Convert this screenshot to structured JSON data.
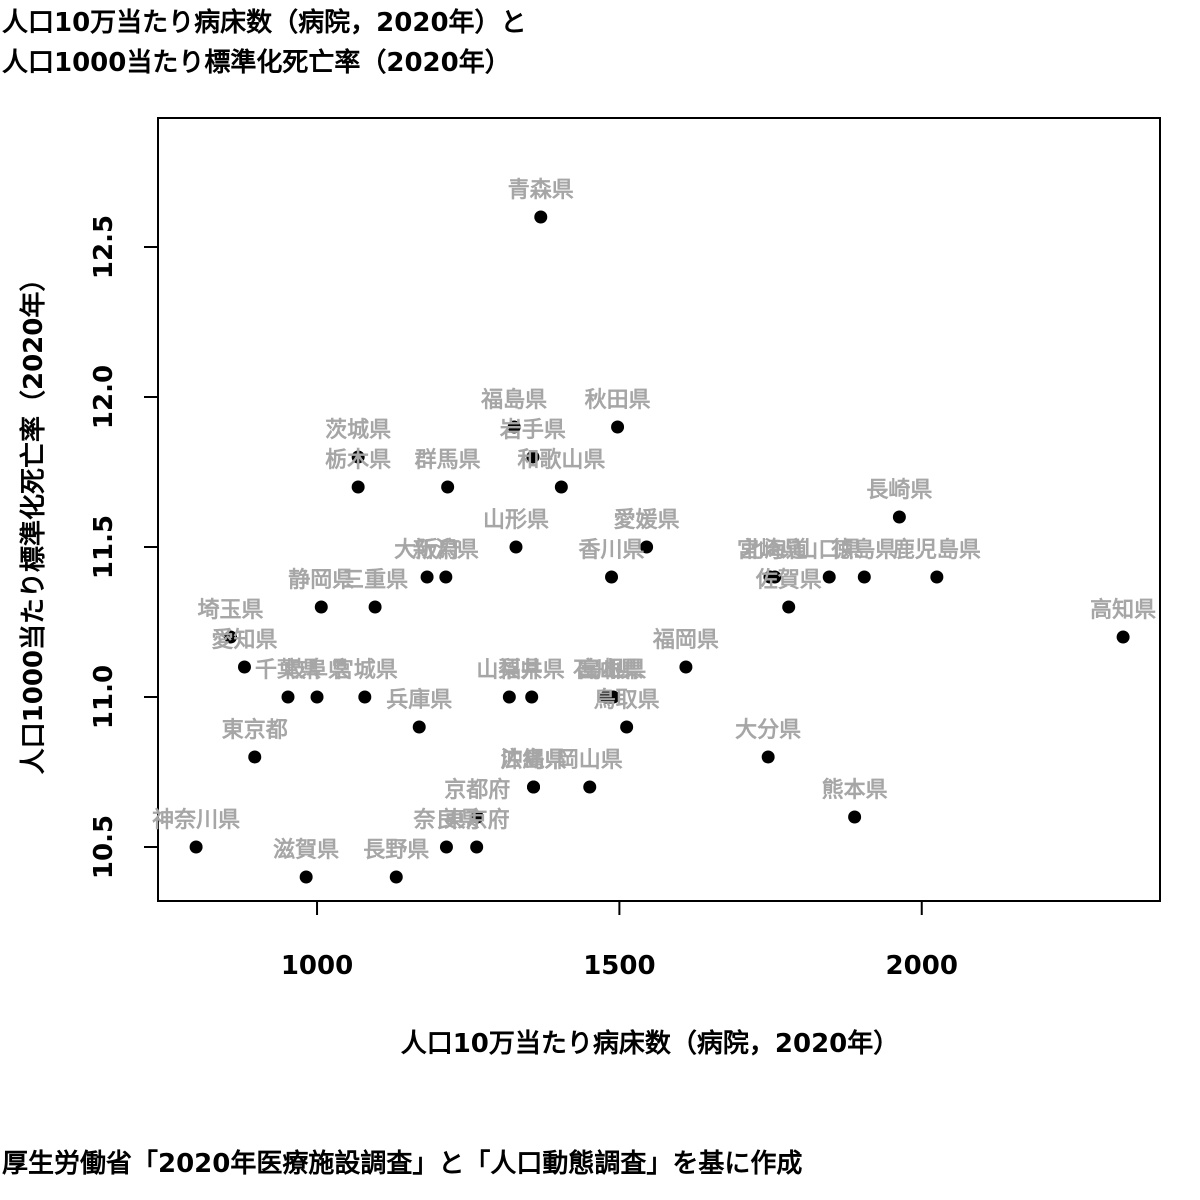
{
  "chart_data": {
    "type": "scatter",
    "title_lines": [
      "人口10万当たり病床数（病院，2020年）と",
      "人口1000当たり標準化死亡率（2020年）"
    ],
    "xlabel": "人口10万当たり病床数（病院，2020年）",
    "ylabel": "人口1000当たり標準化死亡率（2020年）",
    "caption": "厚生労働省「2020年医療施設調査」と「人口動態調査」を基に作成",
    "xlim": [
      737,
      2394
    ],
    "ylim": [
      10.32,
      12.93
    ],
    "xticks": [
      1000,
      1500,
      2000
    ],
    "yticks": [
      10.5,
      11.0,
      11.5,
      12.0,
      12.5
    ],
    "grid": false,
    "points": [
      {
        "name": "青森県",
        "x": 1370,
        "y": 12.6
      },
      {
        "name": "福島県",
        "x": 1326,
        "y": 11.9
      },
      {
        "name": "秋田県",
        "x": 1497,
        "y": 11.9
      },
      {
        "name": "茨城県",
        "x": 1068,
        "y": 11.8
      },
      {
        "name": "岩手県",
        "x": 1357,
        "y": 11.8
      },
      {
        "name": "栃木県",
        "x": 1068,
        "y": 11.7
      },
      {
        "name": "群馬県",
        "x": 1216,
        "y": 11.7
      },
      {
        "name": "和歌山県",
        "x": 1404,
        "y": 11.7
      },
      {
        "name": "長崎県",
        "x": 1963,
        "y": 11.6
      },
      {
        "name": "山形県",
        "x": 1329,
        "y": 11.5
      },
      {
        "name": "愛媛県",
        "x": 1545,
        "y": 11.5
      },
      {
        "name": "大阪府",
        "x": 1182,
        "y": 11.4
      },
      {
        "name": "新潟県",
        "x": 1213,
        "y": 11.4
      },
      {
        "name": "香川県",
        "x": 1487,
        "y": 11.4
      },
      {
        "name": "宮崎県",
        "x": 1749,
        "y": 11.4
      },
      {
        "name": "北海道",
        "x": 1757,
        "y": 11.4
      },
      {
        "name": "山口県",
        "x": 1847,
        "y": 11.4
      },
      {
        "name": "徳島県",
        "x": 1905,
        "y": 11.4
      },
      {
        "name": "鹿児島県",
        "x": 2025,
        "y": 11.4
      },
      {
        "name": "静岡県",
        "x": 1007,
        "y": 11.3
      },
      {
        "name": "三重県",
        "x": 1096,
        "y": 11.3
      },
      {
        "name": "佐賀県",
        "x": 1780,
        "y": 11.3
      },
      {
        "name": "埼玉県",
        "x": 857,
        "y": 11.2
      },
      {
        "name": "高知県",
        "x": 2333,
        "y": 11.2
      },
      {
        "name": "愛知県",
        "x": 880,
        "y": 11.1
      },
      {
        "name": "福岡県",
        "x": 1610,
        "y": 11.1
      },
      {
        "name": "千葉県",
        "x": 952,
        "y": 11.0
      },
      {
        "name": "岐阜県",
        "x": 1000,
        "y": 11.0
      },
      {
        "name": "宮城県",
        "x": 1079,
        "y": 11.0
      },
      {
        "name": "山梨県",
        "x": 1318,
        "y": 11.0
      },
      {
        "name": "福井県",
        "x": 1355,
        "y": 11.0
      },
      {
        "name": "石川県",
        "x": 1478,
        "y": 11.0
      },
      {
        "name": "富山県",
        "x": 1485,
        "y": 11.0
      },
      {
        "name": "島根県",
        "x": 1490,
        "y": 11.0
      },
      {
        "name": "兵庫県",
        "x": 1169,
        "y": 10.9
      },
      {
        "name": "鳥取県",
        "x": 1512,
        "y": 10.9
      },
      {
        "name": "東京都",
        "x": 897,
        "y": 10.8
      },
      {
        "name": "大分県",
        "x": 1746,
        "y": 10.8
      },
      {
        "name": "沖縄県",
        "x": 1358,
        "y": 10.7
      },
      {
        "name": "広島県",
        "x": 1358,
        "y": 10.7
      },
      {
        "name": "岡山県",
        "x": 1451,
        "y": 10.7
      },
      {
        "name": "熊本県",
        "x": 1889,
        "y": 10.6
      },
      {
        "name": "京都府",
        "x": 1265,
        "y": 10.6
      },
      {
        "name": "神奈川県",
        "x": 800,
        "y": 10.5
      },
      {
        "name": "奈良県",
        "x": 1214,
        "y": 10.5
      },
      {
        "name": "東京府",
        "x": 1264,
        "y": 10.5
      },
      {
        "name": "滋賀県",
        "x": 982,
        "y": 10.4
      },
      {
        "name": "長野県",
        "x": 1131,
        "y": 10.4
      }
    ]
  }
}
